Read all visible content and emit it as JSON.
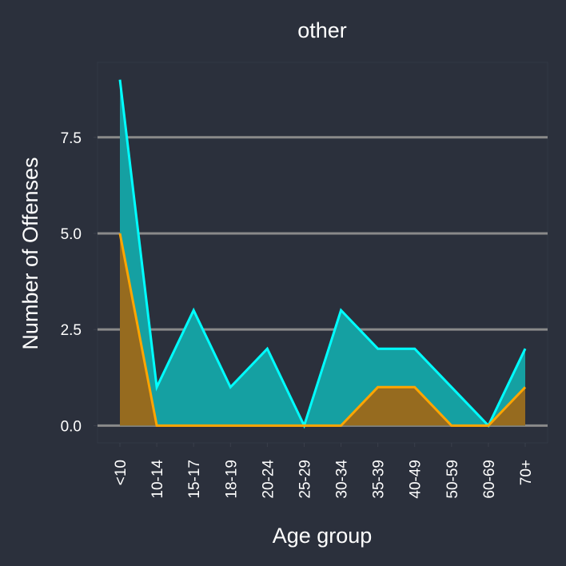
{
  "chart_data": {
    "type": "area",
    "title": "other",
    "xlabel": "Age group",
    "ylabel": "Number of Offenses",
    "categories": [
      "<10",
      "10-14",
      "15-17",
      "18-19",
      "20-24",
      "25-29",
      "30-34",
      "35-39",
      "40-49",
      "50-59",
      "60-69",
      "70+"
    ],
    "series": [
      {
        "values": [
          9,
          1,
          3,
          1,
          2,
          0,
          3,
          2,
          2,
          1,
          0,
          2
        ],
        "line_color": "#00ffff",
        "fill_color": "#15a0a2"
      },
      {
        "values": [
          5,
          0,
          0,
          0,
          0,
          0,
          0,
          1,
          1,
          0,
          0,
          1
        ],
        "line_color": "#ffa500",
        "fill_color": "#966b1f"
      }
    ],
    "yticks": [
      0.0,
      2.5,
      5.0,
      7.5
    ],
    "ytick_labels": [
      "0.0",
      "2.5",
      "5.0",
      "7.5"
    ],
    "ylim": [
      -0.45,
      9.45
    ],
    "grid": "horizontal",
    "colors": {
      "background": "#2b303c",
      "panel": "#2b303c",
      "grid": "#8a8a8a",
      "text": "#ffffff"
    }
  }
}
